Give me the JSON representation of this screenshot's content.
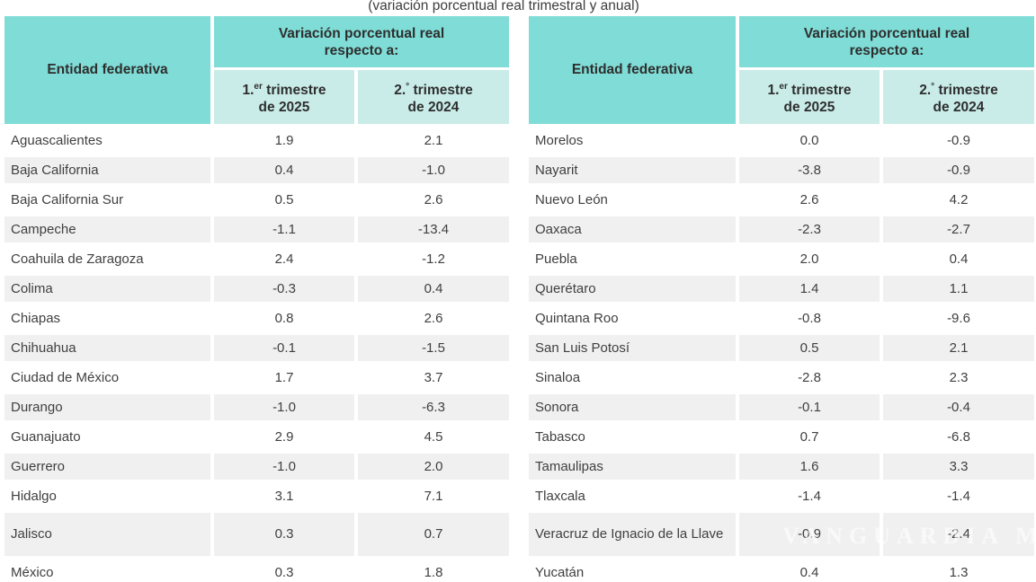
{
  "title": "(variación porcentual real trimestral y anual)",
  "watermark": {
    "text": "VANGUARDIA MX"
  },
  "colors": {
    "header_teal": "#7fdcd6",
    "subheader_teal": "#c9ece8",
    "stripe_gray": "#f0f0f0",
    "text_dark": "#3c3c3c"
  },
  "chart_data": {
    "type": "table",
    "title": "(variación porcentual real trimestral y anual)",
    "header": {
      "entity": "Entidad federativa",
      "group_line1": "Variación porcentual real",
      "group_line2": "respecto a:",
      "col1": {
        "num": "1.",
        "sup": "er",
        "word": " trimestre",
        "line2": "de 2025"
      },
      "col2": {
        "num": "2.",
        "sup": "°",
        "word": " trimestre",
        "line2": "de 2024"
      }
    },
    "column_headers": [
      "Entidad federativa",
      "1.er trimestre de 2025",
      "2.° trimestre de 2024"
    ],
    "tables": [
      {
        "rows": [
          [
            "Aguascalientes",
            "1.9",
            "2.1"
          ],
          [
            "Baja California",
            "0.4",
            "-1.0"
          ],
          [
            "Baja California Sur",
            "0.5",
            "2.6"
          ],
          [
            "Campeche",
            "-1.1",
            "-13.4"
          ],
          [
            "Coahuila de Zaragoza",
            "2.4",
            "-1.2"
          ],
          [
            "Colima",
            "-0.3",
            "0.4"
          ],
          [
            "Chiapas",
            "0.8",
            "2.6"
          ],
          [
            "Chihuahua",
            "-0.1",
            "-1.5"
          ],
          [
            "Ciudad de México",
            "1.7",
            "3.7"
          ],
          [
            "Durango",
            "-1.0",
            "-6.3"
          ],
          [
            "Guanajuato",
            "2.9",
            "4.5"
          ],
          [
            "Guerrero",
            "-1.0",
            "2.0"
          ],
          [
            "Hidalgo",
            "3.1",
            "7.1"
          ],
          [
            "Jalisco",
            "0.3",
            "0.7"
          ],
          [
            "México",
            "0.3",
            "1.8"
          ]
        ]
      },
      {
        "rows": [
          [
            "Morelos",
            "0.0",
            "-0.9"
          ],
          [
            "Nayarit",
            "-3.8",
            "-0.9"
          ],
          [
            "Nuevo León",
            "2.6",
            "4.2"
          ],
          [
            "Oaxaca",
            "-2.3",
            "-2.7"
          ],
          [
            "Puebla",
            "2.0",
            "0.4"
          ],
          [
            "Querétaro",
            "1.4",
            "1.1"
          ],
          [
            "Quintana Roo",
            "-0.8",
            "-9.6"
          ],
          [
            "San Luis Potosí",
            "0.5",
            "2.1"
          ],
          [
            "Sinaloa",
            "-2.8",
            "2.3"
          ],
          [
            "Sonora",
            "-0.1",
            "-0.4"
          ],
          [
            "Tabasco",
            "0.7",
            "-6.8"
          ],
          [
            "Tamaulipas",
            "1.6",
            "3.3"
          ],
          [
            "Tlaxcala",
            "-1.4",
            "-1.4"
          ],
          [
            "Veracruz de Ignacio de la Llave",
            "-0.9",
            "-2.4"
          ],
          [
            "Yucatán",
            "0.4",
            "1.3"
          ]
        ]
      }
    ]
  }
}
